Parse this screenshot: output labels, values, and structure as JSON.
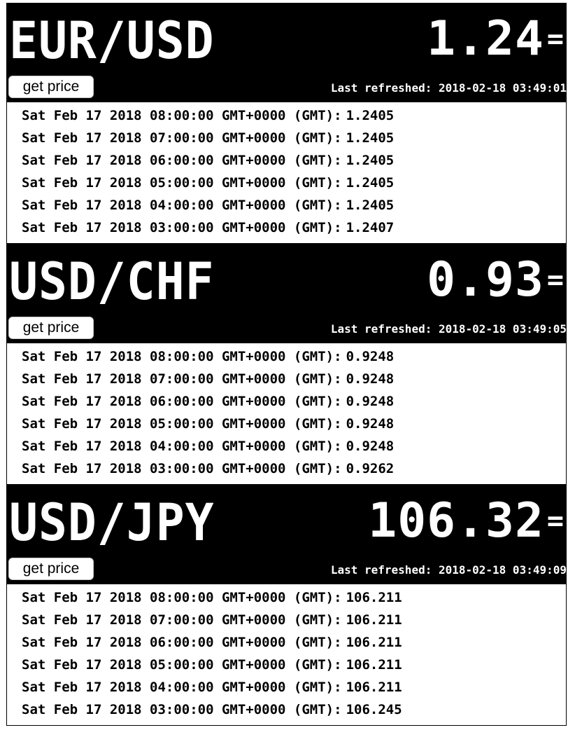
{
  "panels": [
    {
      "pair": "EUR/USD",
      "price": "1.24",
      "price_suffix": "=",
      "button_label": "get price",
      "last_refreshed": "Last refreshed: 2018-02-18 03:49:01",
      "history": [
        {
          "time": "Sat Feb 17 2018 08:00:00 GMT+0000 (GMT):",
          "value": "1.2405"
        },
        {
          "time": "Sat Feb 17 2018 07:00:00 GMT+0000 (GMT):",
          "value": "1.2405"
        },
        {
          "time": "Sat Feb 17 2018 06:00:00 GMT+0000 (GMT):",
          "value": "1.2405"
        },
        {
          "time": "Sat Feb 17 2018 05:00:00 GMT+0000 (GMT):",
          "value": "1.2405"
        },
        {
          "time": "Sat Feb 17 2018 04:00:00 GMT+0000 (GMT):",
          "value": "1.2405"
        },
        {
          "time": "Sat Feb 17 2018 03:00:00 GMT+0000 (GMT):",
          "value": "1.2407"
        }
      ]
    },
    {
      "pair": "USD/CHF",
      "price": "0.93",
      "price_suffix": "=",
      "button_label": "get price",
      "last_refreshed": "Last refreshed: 2018-02-18 03:49:05",
      "history": [
        {
          "time": "Sat Feb 17 2018 08:00:00 GMT+0000 (GMT):",
          "value": "0.9248"
        },
        {
          "time": "Sat Feb 17 2018 07:00:00 GMT+0000 (GMT):",
          "value": "0.9248"
        },
        {
          "time": "Sat Feb 17 2018 06:00:00 GMT+0000 (GMT):",
          "value": "0.9248"
        },
        {
          "time": "Sat Feb 17 2018 05:00:00 GMT+0000 (GMT):",
          "value": "0.9248"
        },
        {
          "time": "Sat Feb 17 2018 04:00:00 GMT+0000 (GMT):",
          "value": "0.9248"
        },
        {
          "time": "Sat Feb 17 2018 03:00:00 GMT+0000 (GMT):",
          "value": "0.9262"
        }
      ]
    },
    {
      "pair": "USD/JPY",
      "price": "106.32",
      "price_suffix": "=",
      "button_label": "get price",
      "last_refreshed": "Last refreshed: 2018-02-18 03:49:09",
      "history": [
        {
          "time": "Sat Feb 17 2018 08:00:00 GMT+0000 (GMT):",
          "value": "106.211"
        },
        {
          "time": "Sat Feb 17 2018 07:00:00 GMT+0000 (GMT):",
          "value": "106.211"
        },
        {
          "time": "Sat Feb 17 2018 06:00:00 GMT+0000 (GMT):",
          "value": "106.211"
        },
        {
          "time": "Sat Feb 17 2018 05:00:00 GMT+0000 (GMT):",
          "value": "106.211"
        },
        {
          "time": "Sat Feb 17 2018 04:00:00 GMT+0000 (GMT):",
          "value": "106.211"
        },
        {
          "time": "Sat Feb 17 2018 03:00:00 GMT+0000 (GMT):",
          "value": "106.245"
        }
      ]
    }
  ]
}
